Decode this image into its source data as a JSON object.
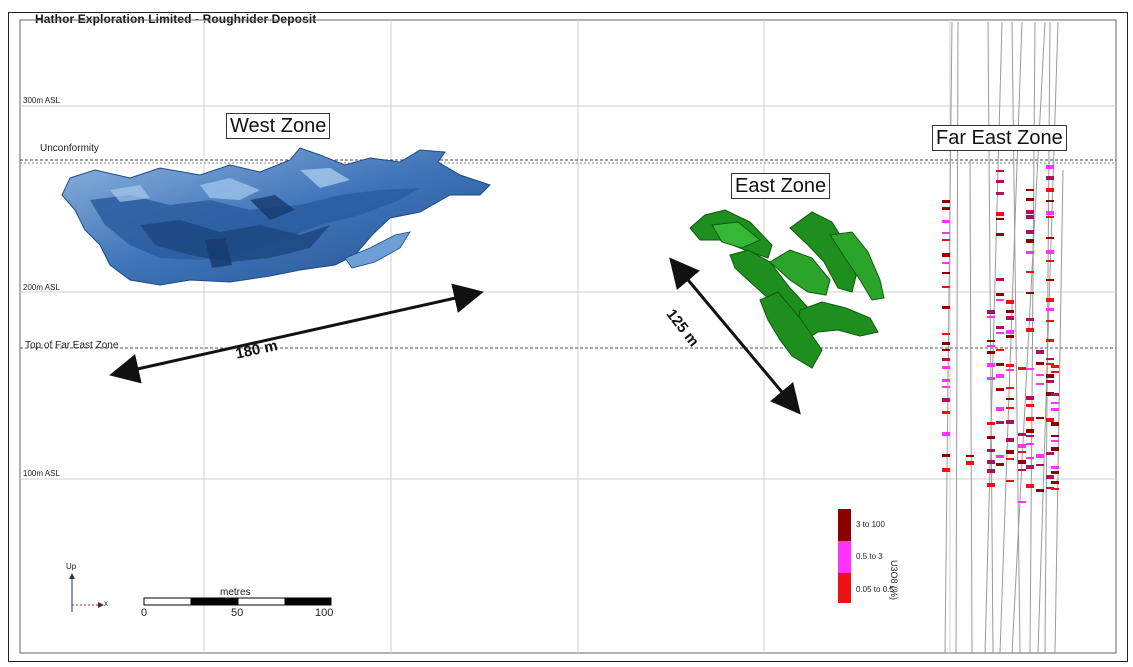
{
  "title": "Hathor Exploration Limited - Roughrider Deposit",
  "elevations": {
    "l300": "300m ASL",
    "l200": "200m ASL",
    "l100": "100m ASL",
    "unconformity": "Unconformity",
    "top_far_east": "Top of Far East Zone"
  },
  "zones": {
    "west": "West Zone",
    "east": "East Zone",
    "far_east": "Far East Zone"
  },
  "distances": {
    "west": "180 m",
    "east": "125 m"
  },
  "legend": {
    "title": "U3O8 (%)",
    "items": [
      {
        "label": "3 to 100",
        "color": "#8b0000"
      },
      {
        "label": "0.5 to 3",
        "color": "#ff33ff"
      },
      {
        "label": "0.05 to 0.5",
        "color": "#ee1111"
      }
    ]
  },
  "orientation": {
    "up": "Up",
    "x": "x"
  },
  "scale": {
    "unit": "metres",
    "ticks": [
      "0",
      "50",
      "100"
    ]
  },
  "colors": {
    "west_zone": "#4f86c6",
    "east_zone": "#1e8f1e",
    "grid": "#cccccc"
  }
}
